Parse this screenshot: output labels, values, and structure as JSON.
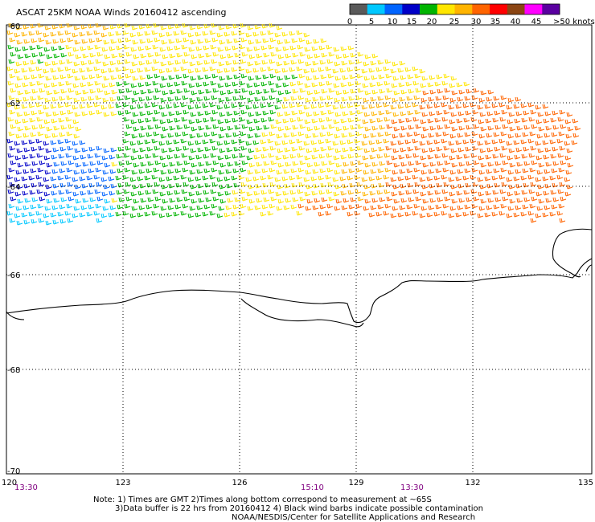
{
  "title": "ASCAT 25KM NOAA Winds 20160412 ascending",
  "legend": {
    "values": [
      "0",
      "5",
      "10",
      "15",
      "20",
      "25",
      "30",
      "35",
      "40",
      "45",
      ">50 knots"
    ],
    "colors": [
      "#5a5a5a",
      "#00c8ff",
      "#0064ff",
      "#0000c8",
      "#00b400",
      "#ffe600",
      "#ffb400",
      "#ff6400",
      "#ff0000",
      "#8b4513",
      "#ff00ff",
      "#5a00a0"
    ]
  },
  "lat_labels": [
    "-60",
    "-62",
    "-64",
    "-66",
    "-68",
    "-70"
  ],
  "lon_labels": [
    "120",
    "123",
    "126",
    "129",
    "132",
    "135"
  ],
  "times": [
    "13:30",
    "15:10",
    "13:30"
  ],
  "notes": [
    "Note: 1) Times are GMT 2)Times along bottom correspond to measurement at ~65S",
    "3)Data buffer is 22 hrs from 20160412 4) Black wind barbs indicate possible contamination",
    "NOAA/NESDIS/Center for Satellite Applications and Research"
  ]
}
